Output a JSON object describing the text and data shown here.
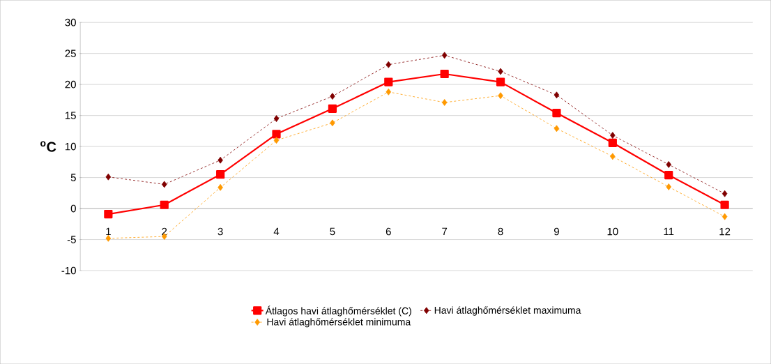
{
  "chart_data": {
    "type": "line",
    "ylabel": "$^{o}$C",
    "categories": [
      "1",
      "2",
      "3",
      "4",
      "5",
      "6",
      "7",
      "8",
      "9",
      "10",
      "11",
      "12"
    ],
    "ylim": [
      -10,
      30
    ],
    "yticks": [
      -10,
      -5,
      0,
      5,
      10,
      15,
      20,
      25,
      30
    ],
    "grid": "y",
    "legend": "bottom",
    "series": [
      {
        "name": "Átlagos havi átlaghőmérséklet  (C)",
        "color": "#ff0000",
        "marker": "square",
        "line_style": "solid",
        "values": [
          -0.9,
          0.6,
          5.5,
          12.0,
          16.1,
          20.4,
          21.7,
          20.4,
          15.4,
          10.6,
          5.4,
          0.6
        ]
      },
      {
        "name": "Havi átlaghőmérséklet maximuma",
        "color": "#800000",
        "marker": "diamond",
        "line_style": "dashed",
        "values": [
          5.1,
          3.9,
          7.8,
          14.5,
          18.1,
          23.2,
          24.7,
          22.1,
          18.3,
          11.8,
          7.1,
          2.4
        ]
      },
      {
        "name": "Havi átlaghőmérséklet minimuma",
        "color": "#ff9900",
        "marker": "diamond",
        "line_style": "dashed",
        "values": [
          -4.8,
          -4.5,
          3.4,
          11.0,
          13.8,
          18.8,
          17.1,
          18.2,
          12.9,
          8.4,
          3.5,
          -1.3
        ]
      }
    ]
  }
}
